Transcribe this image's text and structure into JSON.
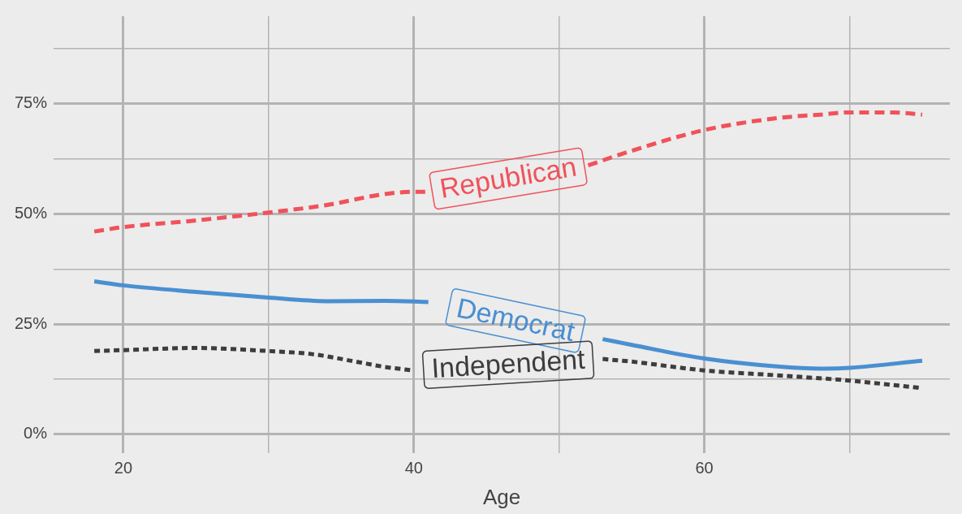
{
  "chart_data": {
    "type": "line",
    "xlabel": "Age",
    "xlim": [
      15.2,
      76.9
    ],
    "ylim": [
      -4.2,
      94.8
    ],
    "xticks": [
      20,
      {
        "value": 30,
        "label": null
      },
      40,
      {
        "value": 50,
        "label": null
      },
      60,
      {
        "value": 70,
        "label": null
      }
    ],
    "yticks": [
      {
        "value": 0,
        "label": "0%"
      },
      {
        "value": 12.5,
        "label": null
      },
      {
        "value": 25,
        "label": "25%"
      },
      {
        "value": 37.5,
        "label": null
      },
      {
        "value": 50,
        "label": "50%"
      },
      {
        "value": 62.5,
        "label": null
      },
      {
        "value": 75,
        "label": "75%"
      },
      {
        "value": 87.5,
        "label": null
      }
    ],
    "grid": true,
    "legend": false,
    "marker": "none",
    "series": [
      {
        "name": "Republican",
        "color": "#f0525a",
        "line_style": "dashed",
        "x": [
          18,
          20,
          25,
          30,
          34,
          38,
          40,
          41,
          46,
          51,
          52,
          55,
          60,
          65,
          68,
          70,
          73,
          75
        ],
        "values": [
          46,
          47,
          48.5,
          50.3,
          52,
          54.5,
          55,
          55,
          null,
          null,
          61,
          64.3,
          69,
          71.7,
          72.5,
          73,
          73,
          72.5
        ]
      },
      {
        "name": "Democrat",
        "color": "#4a8fd1",
        "line_style": "solid",
        "x": [
          18,
          20,
          25,
          30,
          34,
          38,
          41,
          47,
          53,
          55,
          60,
          65,
          68,
          70,
          75
        ],
        "values": [
          34.7,
          33.8,
          32.3,
          31,
          30.2,
          30.3,
          30,
          null,
          21.6,
          20.3,
          17.2,
          15.4,
          14.9,
          15.1,
          16.7
        ]
      },
      {
        "name": "Independent",
        "color": "#3d3d3d",
        "line_style": "dotted",
        "x": [
          18,
          20,
          25,
          30,
          33,
          36,
          38,
          40,
          46,
          53,
          55,
          60,
          65,
          70,
          75
        ],
        "values": [
          18.9,
          19.1,
          19.6,
          18.9,
          18.2,
          16.5,
          15.3,
          14.5,
          null,
          17.1,
          16.5,
          14.5,
          13.4,
          12.2,
          10.5
        ]
      }
    ]
  }
}
